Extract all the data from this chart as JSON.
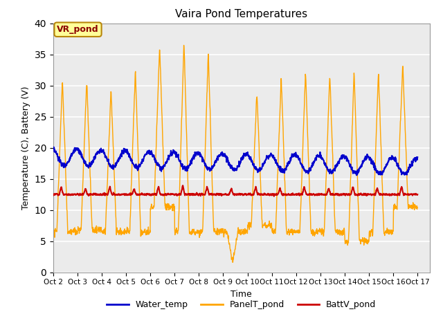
{
  "title": "Vaira Pond Temperatures",
  "xlabel": "Time",
  "ylabel": "Temperature (C), Battery (V)",
  "ylim": [
    0,
    40
  ],
  "yticks": [
    0,
    5,
    10,
    15,
    20,
    25,
    30,
    35,
    40
  ],
  "x_tick_labels": [
    "Oct 2",
    "Oct 3",
    "Oct 4",
    "Oct 5",
    "Oct 6",
    "Oct 7",
    "Oct 8",
    "Oct 9",
    "Oct 10",
    "Oct 11",
    "Oct 12",
    "Oct 13",
    "Oct 14",
    "Oct 15",
    "Oct 16",
    "Oct 17"
  ],
  "annotation_text": "VR_pond",
  "annotation_color": "#8B0000",
  "annotation_bg": "#FFFF99",
  "annotation_edge": "#B8860B",
  "water_color": "#0000CC",
  "panel_color": "#FFA500",
  "batt_color": "#CC0000",
  "bg_color": "#EBEBEB",
  "grid_color": "#FFFFFF",
  "legend_labels": [
    "Water_temp",
    "PanelT_pond",
    "BattV_pond"
  ],
  "figsize": [
    6.4,
    4.8
  ],
  "dpi": 100
}
